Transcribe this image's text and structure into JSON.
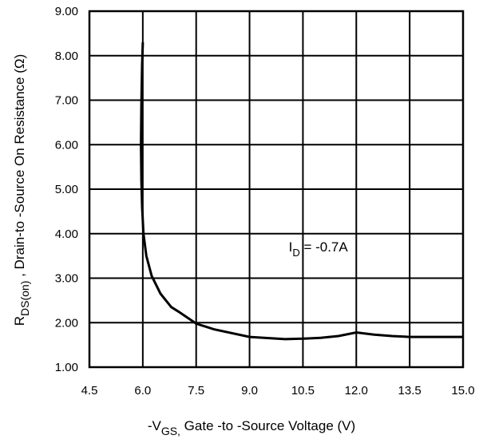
{
  "chart_data": {
    "type": "line",
    "title": "",
    "xlabel": {
      "prefix": "-V",
      "sub": "GS,",
      "rest": " Gate -to -Source Voltage  (V)"
    },
    "ylabel": {
      "prefix": "R",
      "sub": "DS(on)",
      "rest": " ,  Drain-to -Source On Resistance (Ω)"
    },
    "xlim": [
      4.5,
      15.0
    ],
    "ylim": [
      1.0,
      9.0
    ],
    "xticks": [
      "4.5",
      "6.0",
      "7.5",
      "9.0",
      "10.5",
      "12.0",
      "13.5",
      "15.0"
    ],
    "yticks": [
      "1.00",
      "2.00",
      "3.00",
      "4.00",
      "5.00",
      "6.00",
      "7.00",
      "8.00",
      "9.00"
    ],
    "grid": true,
    "annotation": {
      "prefix": "I",
      "sub": "D",
      "rest": " = -0.7A",
      "x": 10.1,
      "y": 3.6
    },
    "series": [
      {
        "x": [
          6.0,
          5.98,
          5.96,
          5.95,
          5.96,
          5.98,
          6.02,
          6.1,
          6.25,
          6.5,
          6.8,
          7.0,
          7.5,
          8.0,
          9.0,
          10.0,
          10.5,
          11.0,
          11.5,
          12.0,
          12.5,
          13.0,
          13.5,
          14.0,
          15.0
        ],
        "y": [
          8.3,
          7.8,
          6.9,
          6.0,
          5.2,
          4.6,
          4.0,
          3.5,
          3.05,
          2.65,
          2.35,
          2.25,
          1.98,
          1.85,
          1.68,
          1.63,
          1.64,
          1.66,
          1.7,
          1.78,
          1.73,
          1.7,
          1.68,
          1.68,
          1.68
        ]
      }
    ]
  }
}
